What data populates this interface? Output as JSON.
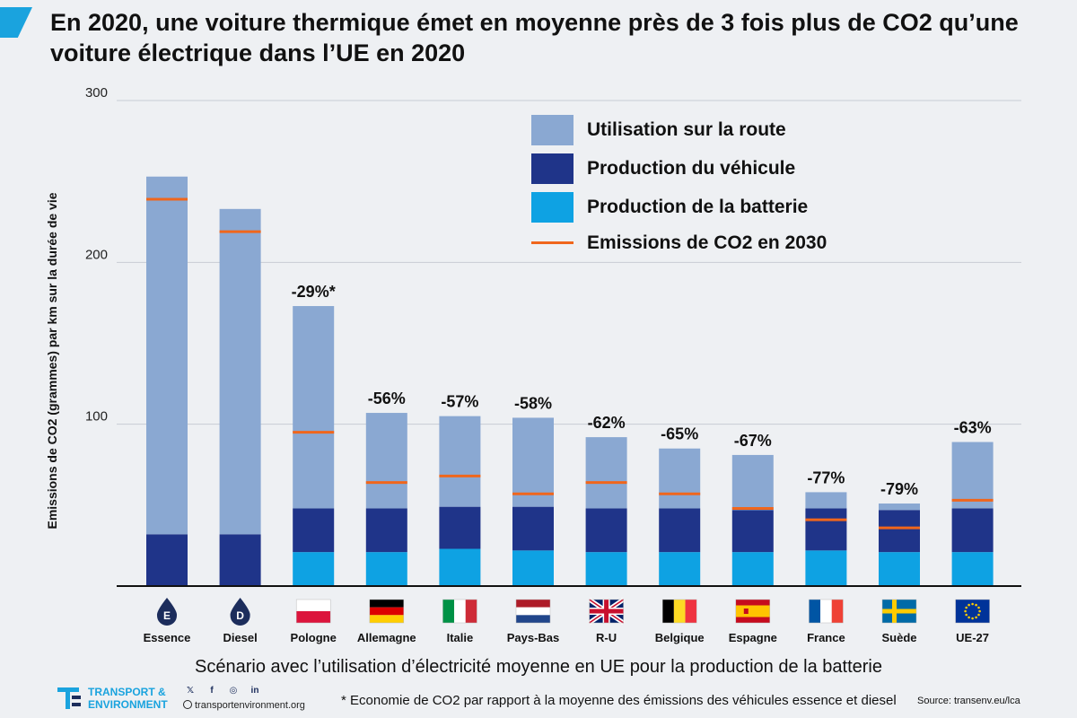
{
  "title": "En 2020, une voiture thermique émet en moyenne près de 3 fois plus de CO2 qu’une voiture électrique dans l’UE en 2020",
  "colors": {
    "road": "#8aa8d2",
    "vehicle": "#1f3489",
    "battery": "#0ea2e3",
    "line2030": "#f0661c",
    "grid": "#c8ccd4"
  },
  "chart_data": {
    "type": "bar",
    "stacked": true,
    "ylabel": "Emissions de CO2 (grammes) par km sur la durée de vie",
    "xlabel": "Scénario avec l’utilisation d’électricité moyenne en UE pour la production de la batterie",
    "ylim": [
      0,
      300
    ],
    "yticks": [
      100,
      200,
      300
    ],
    "grid": true,
    "legend_position": "top-right",
    "categories": [
      "Essence",
      "Diesel",
      "Pologne",
      "Allemagne",
      "Italie",
      "Pays-Bas",
      "R-U",
      "Belgique",
      "Espagne",
      "France",
      "Suède",
      "UE-27"
    ],
    "category_icons": [
      "essence-drop-icon",
      "diesel-drop-icon",
      "poland-flag-icon",
      "germany-flag-icon",
      "italy-flag-icon",
      "netherlands-flag-icon",
      "uk-flag-icon",
      "belgium-flag-icon",
      "spain-flag-icon",
      "france-flag-icon",
      "sweden-flag-icon",
      "eu-flag-icon"
    ],
    "icon_letters": [
      "E",
      "D"
    ],
    "series": [
      {
        "name": "Production de la batterie",
        "values": [
          0,
          0,
          21,
          21,
          23,
          22,
          21,
          21,
          21,
          22,
          21,
          21
        ]
      },
      {
        "name": "Production du véhicule",
        "values": [
          32,
          32,
          27,
          27,
          26,
          27,
          27,
          27,
          26,
          26,
          26,
          27
        ]
      },
      {
        "name": "Utilisation sur la route",
        "values": [
          221,
          201,
          125,
          59,
          56,
          55,
          44,
          37,
          34,
          10,
          4,
          41
        ]
      }
    ],
    "line_series": {
      "name": "Emissions de CO2 en 2030",
      "values": [
        239,
        219,
        95,
        64,
        68,
        57,
        64,
        57,
        48,
        41,
        36,
        53
      ]
    },
    "bar_labels": [
      "",
      "",
      "-29%*",
      "-56%",
      "-57%",
      "-58%",
      "-62%",
      "-65%",
      "-67%",
      "-77%",
      "-79%",
      "-63%"
    ]
  },
  "footer": {
    "org_line1": "TRANSPORT &",
    "org_line2": "ENVIRONMENT",
    "social_icons": [
      "twitter-icon",
      "facebook-icon",
      "instagram-icon",
      "linkedin-icon"
    ],
    "website": "transportenvironment.org",
    "footnote": "* Economie de CO2 par rapport à la moyenne des émissions des véhicules essence et diesel",
    "source": "Source: transenv.eu/lca"
  }
}
